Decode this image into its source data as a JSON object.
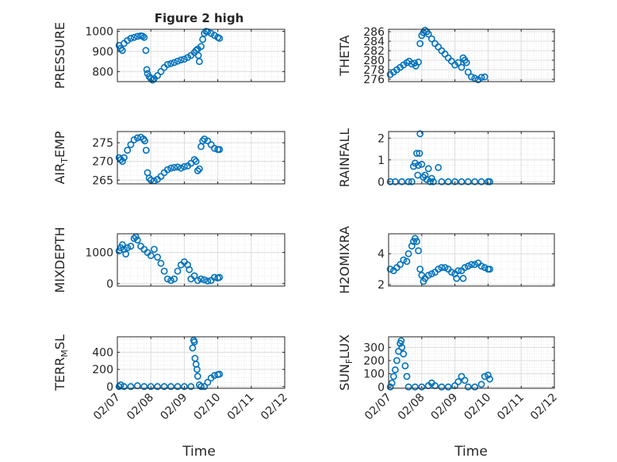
{
  "figure": {
    "title": "Figure 2 high",
    "xlabel": "Time",
    "marker_color": "#0072BD",
    "grid_color": "#d9d9d9",
    "axis_color": "#262626",
    "marker": "open-circle",
    "grid": true,
    "minor_grid": true
  },
  "chart_data": [
    {
      "type": "scatter",
      "ylabel": "PRESSURE",
      "xlim": [
        "02/07",
        "02/12"
      ],
      "ylim": [
        750,
        1010
      ],
      "yticks": [
        800,
        900,
        1000
      ],
      "xticks": [
        "02/07",
        "02/08",
        "02/09",
        "02/10",
        "02/11",
        "02/12"
      ],
      "points": [
        [
          7.05,
          930
        ],
        [
          7.1,
          915
        ],
        [
          7.15,
          905
        ],
        [
          7.2,
          940
        ],
        [
          7.3,
          955
        ],
        [
          7.4,
          965
        ],
        [
          7.5,
          970
        ],
        [
          7.6,
          975
        ],
        [
          7.7,
          978
        ],
        [
          7.75,
          976
        ],
        [
          7.8,
          970
        ],
        [
          7.85,
          905
        ],
        [
          7.88,
          810
        ],
        [
          7.9,
          790
        ],
        [
          7.95,
          775
        ],
        [
          8.0,
          765
        ],
        [
          8.05,
          758
        ],
        [
          8.1,
          765
        ],
        [
          8.2,
          780
        ],
        [
          8.3,
          800
        ],
        [
          8.4,
          820
        ],
        [
          8.5,
          835
        ],
        [
          8.6,
          840
        ],
        [
          8.7,
          845
        ],
        [
          8.8,
          852
        ],
        [
          8.9,
          858
        ],
        [
          9.0,
          862
        ],
        [
          9.1,
          870
        ],
        [
          9.2,
          880
        ],
        [
          9.3,
          895
        ],
        [
          9.35,
          905
        ],
        [
          9.4,
          912
        ],
        [
          9.42,
          880
        ],
        [
          9.45,
          850
        ],
        [
          9.5,
          925
        ],
        [
          9.55,
          960
        ],
        [
          9.6,
          990
        ],
        [
          9.65,
          1000
        ],
        [
          9.7,
          998
        ],
        [
          9.8,
          990
        ],
        [
          9.9,
          980
        ],
        [
          10.0,
          970
        ],
        [
          10.05,
          965
        ]
      ]
    },
    {
      "type": "scatter",
      "ylabel": "THETA",
      "xlim": [
        "02/07",
        "02/12"
      ],
      "ylim": [
        275.5,
        286.5
      ],
      "yticks": [
        276,
        278,
        280,
        282,
        284,
        286
      ],
      "xticks": [
        "02/07",
        "02/08",
        "02/09",
        "02/10",
        "02/11",
        "02/12"
      ],
      "points": [
        [
          7.05,
          277
        ],
        [
          7.15,
          277.5
        ],
        [
          7.25,
          278
        ],
        [
          7.35,
          278.5
        ],
        [
          7.45,
          279
        ],
        [
          7.55,
          279.5
        ],
        [
          7.62,
          279.8
        ],
        [
          7.7,
          279.2
        ],
        [
          7.78,
          279.4
        ],
        [
          7.82,
          278.8
        ],
        [
          7.9,
          279.6
        ],
        [
          7.95,
          283.5
        ],
        [
          8.0,
          285.2
        ],
        [
          8.05,
          285.8
        ],
        [
          8.1,
          286.3
        ],
        [
          8.15,
          286
        ],
        [
          8.2,
          285.5
        ],
        [
          8.3,
          284.5
        ],
        [
          8.4,
          283.5
        ],
        [
          8.5,
          282.8
        ],
        [
          8.6,
          282
        ],
        [
          8.7,
          281.3
        ],
        [
          8.8,
          280.5
        ],
        [
          8.9,
          279.8
        ],
        [
          9.0,
          279
        ],
        [
          9.1,
          279.5
        ],
        [
          9.2,
          278.5
        ],
        [
          9.25,
          280.5
        ],
        [
          9.3,
          280
        ],
        [
          9.35,
          279.5
        ],
        [
          9.4,
          277.5
        ],
        [
          9.5,
          276.5
        ],
        [
          9.6,
          276.2
        ],
        [
          9.7,
          275.9
        ],
        [
          9.8,
          276.4
        ],
        [
          9.9,
          276.5
        ]
      ]
    },
    {
      "type": "scatter",
      "ylabel": "AIR_TEMP",
      "xlim": [
        "02/07",
        "02/12"
      ],
      "ylim": [
        264,
        278
      ],
      "yticks": [
        265,
        270,
        275
      ],
      "xticks": [
        "02/07",
        "02/08",
        "02/09",
        "02/10",
        "02/11",
        "02/12"
      ],
      "points": [
        [
          7.05,
          271
        ],
        [
          7.1,
          270.5
        ],
        [
          7.15,
          270
        ],
        [
          7.2,
          271
        ],
        [
          7.3,
          273
        ],
        [
          7.4,
          274.5
        ],
        [
          7.5,
          275.8
        ],
        [
          7.6,
          276.3
        ],
        [
          7.7,
          276.5
        ],
        [
          7.78,
          276
        ],
        [
          7.82,
          275.5
        ],
        [
          7.86,
          273
        ],
        [
          7.9,
          267
        ],
        [
          7.95,
          265.5
        ],
        [
          8.0,
          265
        ],
        [
          8.1,
          264.8
        ],
        [
          8.2,
          265.2
        ],
        [
          8.3,
          266
        ],
        [
          8.4,
          267
        ],
        [
          8.5,
          267.8
        ],
        [
          8.6,
          268.2
        ],
        [
          8.7,
          268.4
        ],
        [
          8.8,
          268.5
        ],
        [
          8.9,
          268.2
        ],
        [
          9.0,
          268.6
        ],
        [
          9.1,
          268.8
        ],
        [
          9.2,
          269.5
        ],
        [
          9.3,
          270.5
        ],
        [
          9.35,
          270
        ],
        [
          9.4,
          267.5
        ],
        [
          9.45,
          268
        ],
        [
          9.5,
          274
        ],
        [
          9.55,
          275.5
        ],
        [
          9.6,
          276
        ],
        [
          9.7,
          275.5
        ],
        [
          9.8,
          274.5
        ],
        [
          9.9,
          273.5
        ],
        [
          10.0,
          273.2
        ],
        [
          10.05,
          273.2
        ]
      ]
    },
    {
      "type": "scatter",
      "ylabel": "RAINFALL",
      "xlim": [
        "02/07",
        "02/12"
      ],
      "ylim": [
        -0.1,
        2.3
      ],
      "yticks": [
        0,
        1,
        2
      ],
      "xticks": [
        "02/07",
        "02/08",
        "02/09",
        "02/10",
        "02/11",
        "02/12"
      ],
      "points": [
        [
          7.05,
          0
        ],
        [
          7.2,
          0
        ],
        [
          7.4,
          0
        ],
        [
          7.6,
          0
        ],
        [
          7.7,
          0
        ],
        [
          7.75,
          0.7
        ],
        [
          7.8,
          0.85
        ],
        [
          7.85,
          1.3
        ],
        [
          7.88,
          0.3
        ],
        [
          7.9,
          0.75
        ],
        [
          7.93,
          1.3
        ],
        [
          7.95,
          2.2
        ],
        [
          8.0,
          0.8
        ],
        [
          8.05,
          0.2
        ],
        [
          8.1,
          0.3
        ],
        [
          8.15,
          0.1
        ],
        [
          8.2,
          0.6
        ],
        [
          8.25,
          0
        ],
        [
          8.3,
          0.15
        ],
        [
          8.35,
          0
        ],
        [
          8.5,
          0.65
        ],
        [
          8.6,
          0
        ],
        [
          8.8,
          0
        ],
        [
          9.0,
          0
        ],
        [
          9.2,
          0
        ],
        [
          9.4,
          0
        ],
        [
          9.6,
          0
        ],
        [
          9.8,
          0
        ],
        [
          10.0,
          0
        ],
        [
          10.05,
          0
        ]
      ]
    },
    {
      "type": "scatter",
      "ylabel": "MIXDEPTH",
      "xlim": [
        "02/07",
        "02/12"
      ],
      "ylim": [
        -80,
        1600
      ],
      "yticks": [
        0,
        1000
      ],
      "xticks": [
        "02/07",
        "02/08",
        "02/09",
        "02/10",
        "02/11",
        "02/12"
      ],
      "points": [
        [
          7.05,
          1050
        ],
        [
          7.1,
          1150
        ],
        [
          7.15,
          1250
        ],
        [
          7.2,
          1100
        ],
        [
          7.25,
          950
        ],
        [
          7.3,
          1150
        ],
        [
          7.4,
          1200
        ],
        [
          7.5,
          1450
        ],
        [
          7.55,
          1500
        ],
        [
          7.6,
          1400
        ],
        [
          7.7,
          1200
        ],
        [
          7.8,
          1100
        ],
        [
          7.9,
          1000
        ],
        [
          8.0,
          900
        ],
        [
          8.1,
          1100
        ],
        [
          8.2,
          850
        ],
        [
          8.3,
          650
        ],
        [
          8.4,
          400
        ],
        [
          8.5,
          150
        ],
        [
          8.6,
          100
        ],
        [
          8.7,
          150
        ],
        [
          8.8,
          400
        ],
        [
          8.9,
          600
        ],
        [
          9.0,
          700
        ],
        [
          9.1,
          600
        ],
        [
          9.15,
          450
        ],
        [
          9.2,
          150
        ],
        [
          9.3,
          250
        ],
        [
          9.4,
          100
        ],
        [
          9.5,
          150
        ],
        [
          9.6,
          120
        ],
        [
          9.7,
          80
        ],
        [
          9.8,
          100
        ],
        [
          9.9,
          200
        ],
        [
          10.0,
          180
        ],
        [
          10.05,
          200
        ]
      ]
    },
    {
      "type": "scatter",
      "ylabel": "H2OMIXRA",
      "xlim": [
        "02/07",
        "02/12"
      ],
      "ylim": [
        1.9,
        5.3
      ],
      "yticks": [
        2,
        4
      ],
      "xticks": [
        "02/07",
        "02/08",
        "02/09",
        "02/10",
        "02/11",
        "02/12"
      ],
      "points": [
        [
          7.05,
          3
        ],
        [
          7.15,
          2.9
        ],
        [
          7.25,
          3.1
        ],
        [
          7.35,
          3.3
        ],
        [
          7.45,
          3.6
        ],
        [
          7.55,
          3.5
        ],
        [
          7.6,
          4
        ],
        [
          7.7,
          4.5
        ],
        [
          7.75,
          4.8
        ],
        [
          7.8,
          5
        ],
        [
          7.85,
          4.8
        ],
        [
          7.9,
          4.2
        ],
        [
          7.95,
          3
        ],
        [
          8.0,
          2.6
        ],
        [
          8.05,
          2.2
        ],
        [
          8.1,
          2.4
        ],
        [
          8.2,
          2.6
        ],
        [
          8.3,
          2.7
        ],
        [
          8.4,
          2.8
        ],
        [
          8.5,
          3
        ],
        [
          8.6,
          3.1
        ],
        [
          8.7,
          3.1
        ],
        [
          8.8,
          3
        ],
        [
          8.9,
          2.8
        ],
        [
          9.0,
          2.7
        ],
        [
          9.05,
          2.4
        ],
        [
          9.1,
          2.9
        ],
        [
          9.2,
          2.9
        ],
        [
          9.25,
          2.4
        ],
        [
          9.3,
          3.1
        ],
        [
          9.4,
          3.2
        ],
        [
          9.5,
          3.3
        ],
        [
          9.6,
          3.3
        ],
        [
          9.7,
          3.4
        ],
        [
          9.8,
          3.2
        ],
        [
          9.9,
          3.1
        ],
        [
          10.0,
          3
        ],
        [
          10.05,
          3
        ]
      ]
    },
    {
      "type": "scatter",
      "ylabel": "TERR_MSL",
      "xlim": [
        "02/07",
        "02/12"
      ],
      "ylim": [
        -20,
        580
      ],
      "yticks": [
        0,
        200,
        400
      ],
      "xticks": [
        "02/07",
        "02/08",
        "02/09",
        "02/10",
        "02/11",
        "02/12"
      ],
      "points": [
        [
          7.05,
          0
        ],
        [
          7.1,
          20
        ],
        [
          7.2,
          0
        ],
        [
          7.4,
          0
        ],
        [
          7.6,
          10
        ],
        [
          7.8,
          0
        ],
        [
          8.0,
          0
        ],
        [
          8.2,
          0
        ],
        [
          8.4,
          0
        ],
        [
          8.6,
          0
        ],
        [
          8.8,
          0
        ],
        [
          9.0,
          0
        ],
        [
          9.2,
          0
        ],
        [
          9.25,
          450
        ],
        [
          9.28,
          540
        ],
        [
          9.3,
          520
        ],
        [
          9.32,
          330
        ],
        [
          9.35,
          260
        ],
        [
          9.38,
          200
        ],
        [
          9.4,
          120
        ],
        [
          9.45,
          20
        ],
        [
          9.5,
          0
        ],
        [
          9.6,
          0
        ],
        [
          9.7,
          50
        ],
        [
          9.8,
          100
        ],
        [
          9.9,
          130
        ],
        [
          10.0,
          140
        ],
        [
          10.05,
          145
        ]
      ]
    },
    {
      "type": "scatter",
      "ylabel": "SUN_FLUX",
      "xlim": [
        "02/07",
        "02/12"
      ],
      "ylim": [
        -10,
        380
      ],
      "yticks": [
        0,
        100,
        200,
        300
      ],
      "xticks": [
        "02/07",
        "02/08",
        "02/09",
        "02/10",
        "02/11",
        "02/12"
      ],
      "points": [
        [
          7.05,
          0
        ],
        [
          7.1,
          30
        ],
        [
          7.15,
          80
        ],
        [
          7.2,
          130
        ],
        [
          7.25,
          200
        ],
        [
          7.3,
          270
        ],
        [
          7.35,
          330
        ],
        [
          7.38,
          350
        ],
        [
          7.4,
          300
        ],
        [
          7.45,
          250
        ],
        [
          7.5,
          160
        ],
        [
          7.55,
          80
        ],
        [
          7.6,
          0
        ],
        [
          7.8,
          0
        ],
        [
          8.0,
          0
        ],
        [
          8.2,
          10
        ],
        [
          8.3,
          30
        ],
        [
          8.4,
          10
        ],
        [
          8.6,
          0
        ],
        [
          8.8,
          0
        ],
        [
          9.0,
          10
        ],
        [
          9.1,
          40
        ],
        [
          9.2,
          80
        ],
        [
          9.3,
          50
        ],
        [
          9.4,
          0
        ],
        [
          9.6,
          0
        ],
        [
          9.8,
          20
        ],
        [
          9.9,
          80
        ],
        [
          10.0,
          90
        ],
        [
          10.05,
          60
        ]
      ]
    }
  ]
}
